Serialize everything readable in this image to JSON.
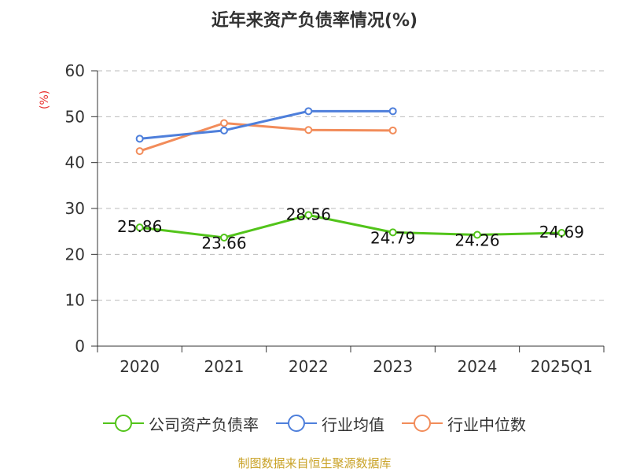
{
  "chart_data": {
    "type": "line",
    "title": "近年来资产负债率情况(%)",
    "y_unit": "(%)",
    "categories": [
      "2020",
      "2021",
      "2022",
      "2023",
      "2024",
      "2025Q1"
    ],
    "ylim": [
      0,
      60
    ],
    "yticks": [
      0,
      10,
      20,
      30,
      40,
      50,
      60
    ],
    "grid": true,
    "legend_position": "bottom",
    "series": [
      {
        "name": "公司资产负债率",
        "color": "#52c41a",
        "values": [
          25.86,
          23.66,
          28.56,
          24.79,
          24.26,
          24.69
        ],
        "labels": [
          "25.86",
          "23.66",
          "28.56",
          "24.79",
          "24.26",
          "24.69"
        ]
      },
      {
        "name": "行业均值",
        "color": "#4e7fdb",
        "values": [
          45.2,
          47.0,
          51.2,
          51.2,
          null,
          null
        ]
      },
      {
        "name": "行业中位数",
        "color": "#f28c5a",
        "values": [
          42.5,
          48.6,
          47.1,
          47.0,
          null,
          null
        ]
      }
    ]
  },
  "source_text": "制图数据来自恒生聚源数据库"
}
